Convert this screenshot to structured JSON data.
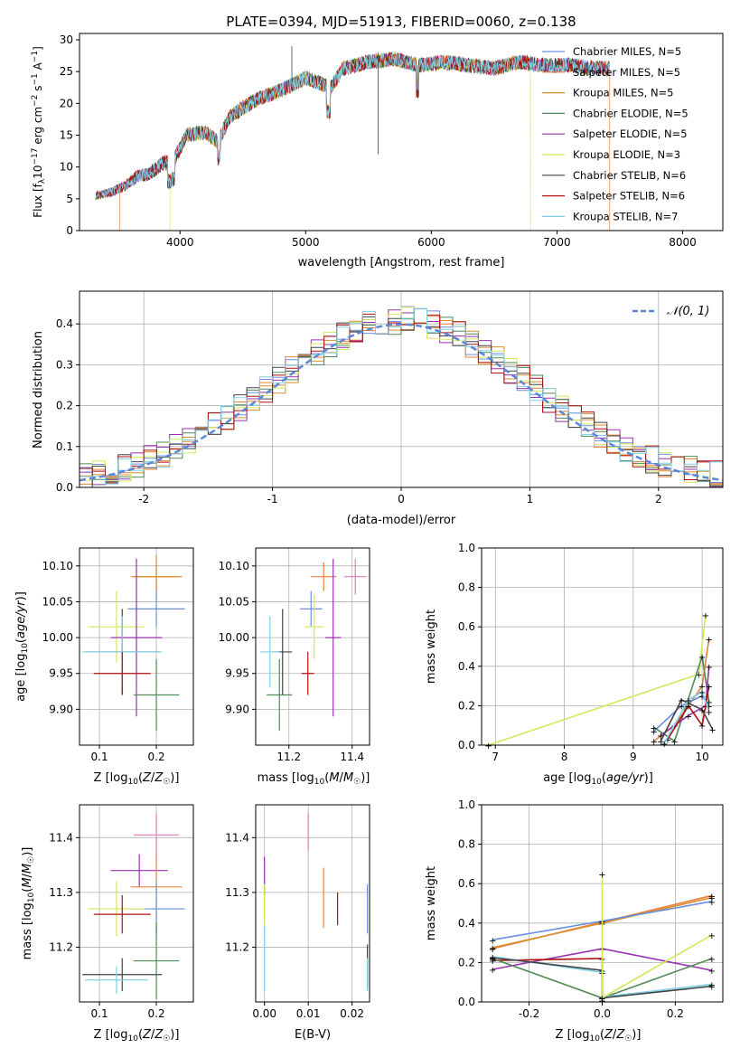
{
  "chart_data": [
    {
      "id": "spectrum",
      "type": "line",
      "title": "PLATE=0394, MJD=51913, FIBERID=0060, z=0.138",
      "xlabel": "wavelength [Angstrom, rest frame]",
      "ylabel": "Flux [f_λ 10^-17 erg cm^-2 s^-1 A^-1]",
      "xlim": [
        3200,
        8320
      ],
      "ylim": [
        0,
        31
      ],
      "xticks": [
        4000,
        5000,
        6000,
        7000,
        8000
      ],
      "yticks": [
        0,
        5,
        10,
        15,
        20,
        25,
        30
      ],
      "grid": false,
      "legend_position": "top-right",
      "series": [
        {
          "name": "Chabrier MILES, N_SSP=5",
          "color": "#6a8fe0"
        },
        {
          "name": "Salpeter MILES, N_SSP=5",
          "color": "#e8823a"
        },
        {
          "name": "Kroupa MILES, N_SSP=5",
          "color": "#d98c2a"
        },
        {
          "name": "Chabrier ELODIE, N_SSP=5",
          "color": "#4f8a56"
        },
        {
          "name": "Salpeter ELODIE, N_SSP=5",
          "color": "#9b30b0"
        },
        {
          "name": "Kroupa ELODIE, N_SSP=3",
          "color": "#d4e85a"
        },
        {
          "name": "Chabrier STELIB, N_SSP=6",
          "color": "#444444"
        },
        {
          "name": "Salpeter STELIB, N_SSP=6",
          "color": "#b01010"
        },
        {
          "name": "Kroupa STELIB, N_SSP=7",
          "color": "#80d0e8"
        }
      ],
      "continuum_points": [
        {
          "x": 3330,
          "y": 5.5
        },
        {
          "x": 3450,
          "y": 6.0
        },
        {
          "x": 3560,
          "y": 7.0
        },
        {
          "x": 3660,
          "y": 8.5
        },
        {
          "x": 3760,
          "y": 9.0
        },
        {
          "x": 3860,
          "y": 10.5
        },
        {
          "x": 3950,
          "y": 11.0
        },
        {
          "x": 4050,
          "y": 15.0
        },
        {
          "x": 4200,
          "y": 15.5
        },
        {
          "x": 4300,
          "y": 14.0
        },
        {
          "x": 4400,
          "y": 18.0
        },
        {
          "x": 4600,
          "y": 20.5
        },
        {
          "x": 4800,
          "y": 22.0
        },
        {
          "x": 4900,
          "y": 23.0
        },
        {
          "x": 5000,
          "y": 24.0
        },
        {
          "x": 5200,
          "y": 22.5
        },
        {
          "x": 5300,
          "y": 25.5
        },
        {
          "x": 5500,
          "y": 26.5
        },
        {
          "x": 5700,
          "y": 27.0
        },
        {
          "x": 5900,
          "y": 26.0
        },
        {
          "x": 6100,
          "y": 26.5
        },
        {
          "x": 6300,
          "y": 26.0
        },
        {
          "x": 6500,
          "y": 25.5
        },
        {
          "x": 6700,
          "y": 26.5
        },
        {
          "x": 6900,
          "y": 26.0
        },
        {
          "x": 7100,
          "y": 26.0
        },
        {
          "x": 7300,
          "y": 25.5
        },
        {
          "x": 7410,
          "y": 25.5
        }
      ]
    },
    {
      "id": "residuals",
      "type": "histogram",
      "xlabel": "(data-model)/error",
      "ylabel": "Normed distribution",
      "xlim": [
        -2.5,
        2.5
      ],
      "ylim": [
        0,
        0.48
      ],
      "xticks": [
        -2,
        -1,
        0,
        1,
        2
      ],
      "yticks": [
        0.0,
        0.1,
        0.2,
        0.3,
        0.4
      ],
      "grid": true,
      "legend_position": "top-right",
      "reference_curve": {
        "name": "N(0,1)",
        "color": "#5b87d8",
        "style": "dashed"
      }
    },
    {
      "id": "age-vs-Z",
      "type": "scatter",
      "xlabel": "Z [log10(Z/Z☉)]",
      "ylabel": "age  [log10(age/yr)]",
      "xlim": [
        0.065,
        0.265
      ],
      "ylim": [
        9.85,
        10.125
      ],
      "xticks": [
        0.1,
        0.2
      ],
      "yticks": [
        9.9,
        9.95,
        10.0,
        10.05,
        10.1
      ],
      "grid": true,
      "points": [
        {
          "series": "Salpeter MILES",
          "x": 0.2,
          "y": 10.085,
          "xerr": 0.045,
          "yerr": 0.03
        },
        {
          "series": "Kroupa MILES",
          "x": 0.2,
          "y": 10.085,
          "xerr": 0.04,
          "yerr": 0.02
        },
        {
          "series": "Chabrier MILES",
          "x": 0.2,
          "y": 10.04,
          "xerr": 0.05,
          "yerr": 0.025
        },
        {
          "series": "Kroupa ELODIE",
          "x": 0.13,
          "y": 10.015,
          "xerr": 0.05,
          "yerr": 0.05
        },
        {
          "series": "Salpeter ELODIE",
          "x": 0.165,
          "y": 10.0,
          "xerr": 0.045,
          "yerr": 0.11
        },
        {
          "series": "Chabrier STELIB",
          "x": 0.14,
          "y": 9.98,
          "xerr": 0.065,
          "yerr": 0.06
        },
        {
          "series": "Kroupa STELIB",
          "x": 0.14,
          "y": 9.98,
          "xerr": 0.07,
          "yerr": 0.05
        },
        {
          "series": "Salpeter STELIB",
          "x": 0.14,
          "y": 9.95,
          "xerr": 0.05,
          "yerr": 0.03
        },
        {
          "series": "Chabrier ELODIE",
          "x": 0.2,
          "y": 9.92,
          "xerr": 0.04,
          "yerr": 0.05
        }
      ]
    },
    {
      "id": "age-vs-mass",
      "type": "scatter",
      "xlabel": "mass [log10(M/M☉)]",
      "ylim": [
        9.85,
        10.125
      ],
      "xlim": [
        11.095,
        11.455
      ],
      "xticks": [
        11.2,
        11.4
      ],
      "yticks": [
        9.9,
        9.95,
        10.0,
        10.05,
        10.1
      ],
      "grid": true,
      "points": [
        {
          "series": "Salpeter MILES",
          "x": 11.31,
          "y": 10.085,
          "xerr": 0.04,
          "yerr": 0.02
        },
        {
          "series": "Kroupa ELODIE",
          "x": 11.41,
          "y": 10.085,
          "xerr": 0.035,
          "yerr": 0.025
        },
        {
          "series": "Chabrier MILES",
          "x": 11.27,
          "y": 10.04,
          "xerr": 0.035,
          "yerr": 0.025
        },
        {
          "series": "Kroupa ELODIE2",
          "x": 11.28,
          "y": 10.015,
          "xerr": 0.03,
          "yerr": 0.045
        },
        {
          "series": "Salpeter ELODIE",
          "x": 11.34,
          "y": 10.0,
          "xerr": 0.025,
          "yerr": 0.11
        },
        {
          "series": "Chabrier STELIB",
          "x": 11.18,
          "y": 9.98,
          "xerr": 0.03,
          "yerr": 0.06
        },
        {
          "series": "Kroupa STELIB",
          "x": 11.14,
          "y": 9.98,
          "xerr": 0.03,
          "yerr": 0.05
        },
        {
          "series": "Salpeter STELIB",
          "x": 11.26,
          "y": 9.95,
          "xerr": 0.02,
          "yerr": 0.03
        },
        {
          "series": "Chabrier ELODIE",
          "x": 11.17,
          "y": 9.92,
          "xerr": 0.04,
          "yerr": 0.05
        }
      ]
    },
    {
      "id": "weight-vs-age",
      "type": "line",
      "xlabel": "age  [log10(age/yr)]",
      "ylabel": "mass weight",
      "xlim": [
        6.8,
        10.3
      ],
      "ylim": [
        0,
        1.0
      ],
      "xticks": [
        7,
        8,
        9,
        10
      ],
      "yticks": [
        0.0,
        0.2,
        0.4,
        0.6,
        0.8,
        1.0
      ],
      "grid": true
    },
    {
      "id": "mass-vs-Z",
      "type": "scatter",
      "xlabel": "Z [log10(Z/Z☉)]",
      "ylabel": "mass [log10(M/M☉)]",
      "xlim": [
        0.065,
        0.265
      ],
      "ylim": [
        11.1,
        11.46
      ],
      "xticks": [
        0.1,
        0.2
      ],
      "yticks": [
        11.2,
        11.3,
        11.4
      ],
      "grid": true
    },
    {
      "id": "mass-vs-EBV",
      "type": "scatter",
      "xlabel": "E(B-V)",
      "xlim": [
        -0.002,
        0.024
      ],
      "ylim": [
        11.1,
        11.46
      ],
      "xticks": [
        0.0,
        0.01,
        0.02
      ],
      "yticks": [
        11.2,
        11.3,
        11.4
      ],
      "grid": true
    },
    {
      "id": "weight-vs-Z",
      "type": "line",
      "xlabel": "Z [log10(Z/Z☉)]",
      "ylabel": "mass weight",
      "xlim": [
        -0.33,
        0.33
      ],
      "ylim": [
        0,
        1.0
      ],
      "xticks": [
        -0.2,
        0.0,
        0.2
      ],
      "yticks": [
        0.0,
        0.2,
        0.4,
        0.6,
        0.8,
        1.0
      ],
      "grid": true
    }
  ]
}
